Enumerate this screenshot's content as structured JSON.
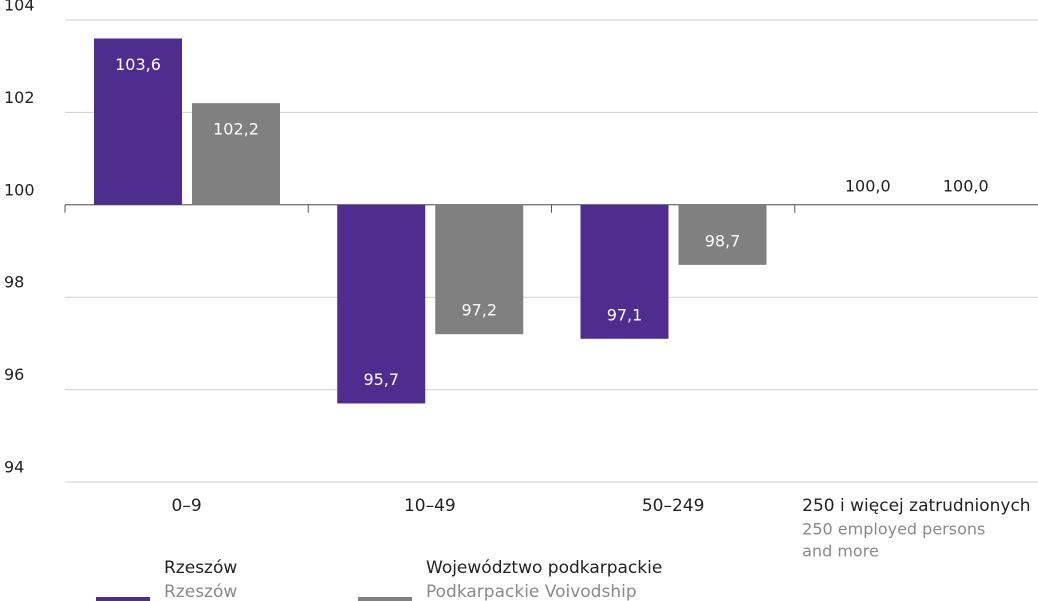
{
  "chart_data": {
    "type": "bar",
    "categories": [
      "0–9",
      "10–49",
      "50–249",
      "250 i więcej zatrudnionych"
    ],
    "categories_en": [
      null,
      null,
      null,
      [
        "250 employed persons",
        "and more"
      ]
    ],
    "series": [
      {
        "name": "Rzeszów",
        "name_en": "Rzeszów",
        "color": "#4f2d8f",
        "values": [
          103.6,
          95.7,
          97.1,
          100.0
        ],
        "value_labels": [
          "103,6",
          "95,7",
          "97,1",
          "100,0"
        ]
      },
      {
        "name": "Województwo podkarpackie",
        "name_en": "Podkarpackie Voivodship",
        "color": "#808080",
        "values": [
          102.2,
          97.2,
          98.7,
          100.0
        ],
        "value_labels": [
          "102,2",
          "97,2",
          "98,7",
          "100,0"
        ]
      }
    ],
    "baseline": 100,
    "ylim": [
      94,
      104
    ],
    "yticks": [
      94,
      96,
      98,
      100,
      102,
      104
    ],
    "grid": true
  }
}
